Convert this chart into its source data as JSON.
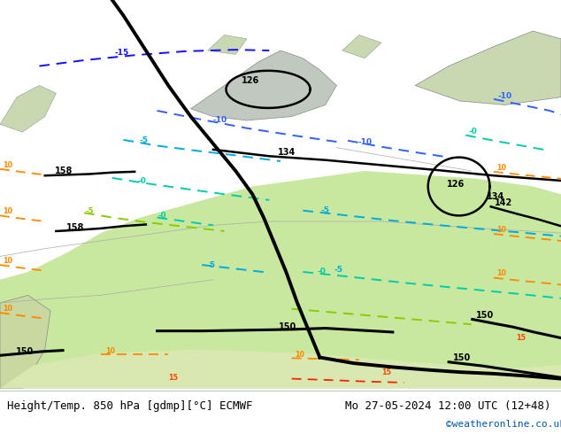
{
  "title_left": "Height/Temp. 850 hPa [gdmp][°C] ECMWF",
  "title_right": "Mo 27-05-2024 12:00 UTC (12+48)",
  "watermark": "©weatheronline.co.uk",
  "bg_color": "#d8d8d8",
  "land_color": "#c8e8a0",
  "footer_bg": "#ffffff",
  "text_color": "#000000",
  "watermark_color": "#0055aa",
  "font_size_footer": 9
}
